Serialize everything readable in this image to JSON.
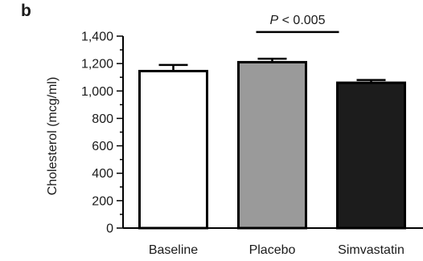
{
  "panel_label": "b",
  "chart_data": {
    "type": "bar",
    "categories": [
      "Baseline",
      "Placebo",
      "Simvastatin"
    ],
    "values": [
      1145,
      1210,
      1060
    ],
    "errors": [
      45,
      25,
      20
    ],
    "bar_colors": [
      "#ffffff",
      "#9a9a9a",
      "#1c1c1c"
    ],
    "bar_edge_color": "#000000",
    "ylabel": "Cholesterol (mcg/ml)",
    "xlabel": "",
    "ylim": [
      0,
      1400
    ],
    "yticks": [
      0,
      200,
      400,
      600,
      800,
      1000,
      1200,
      1400
    ],
    "ytick_labels": [
      "0",
      "200",
      "400",
      "600",
      "800",
      "1,000",
      "1,200",
      "1,400"
    ],
    "minor_tick_step": 100,
    "grid": false,
    "annotations": [
      {
        "text_italic": "P",
        "text_rest": " < 0.005",
        "from_category": "Placebo",
        "to_category": "Simvastatin",
        "y_value": 1430
      }
    ]
  }
}
